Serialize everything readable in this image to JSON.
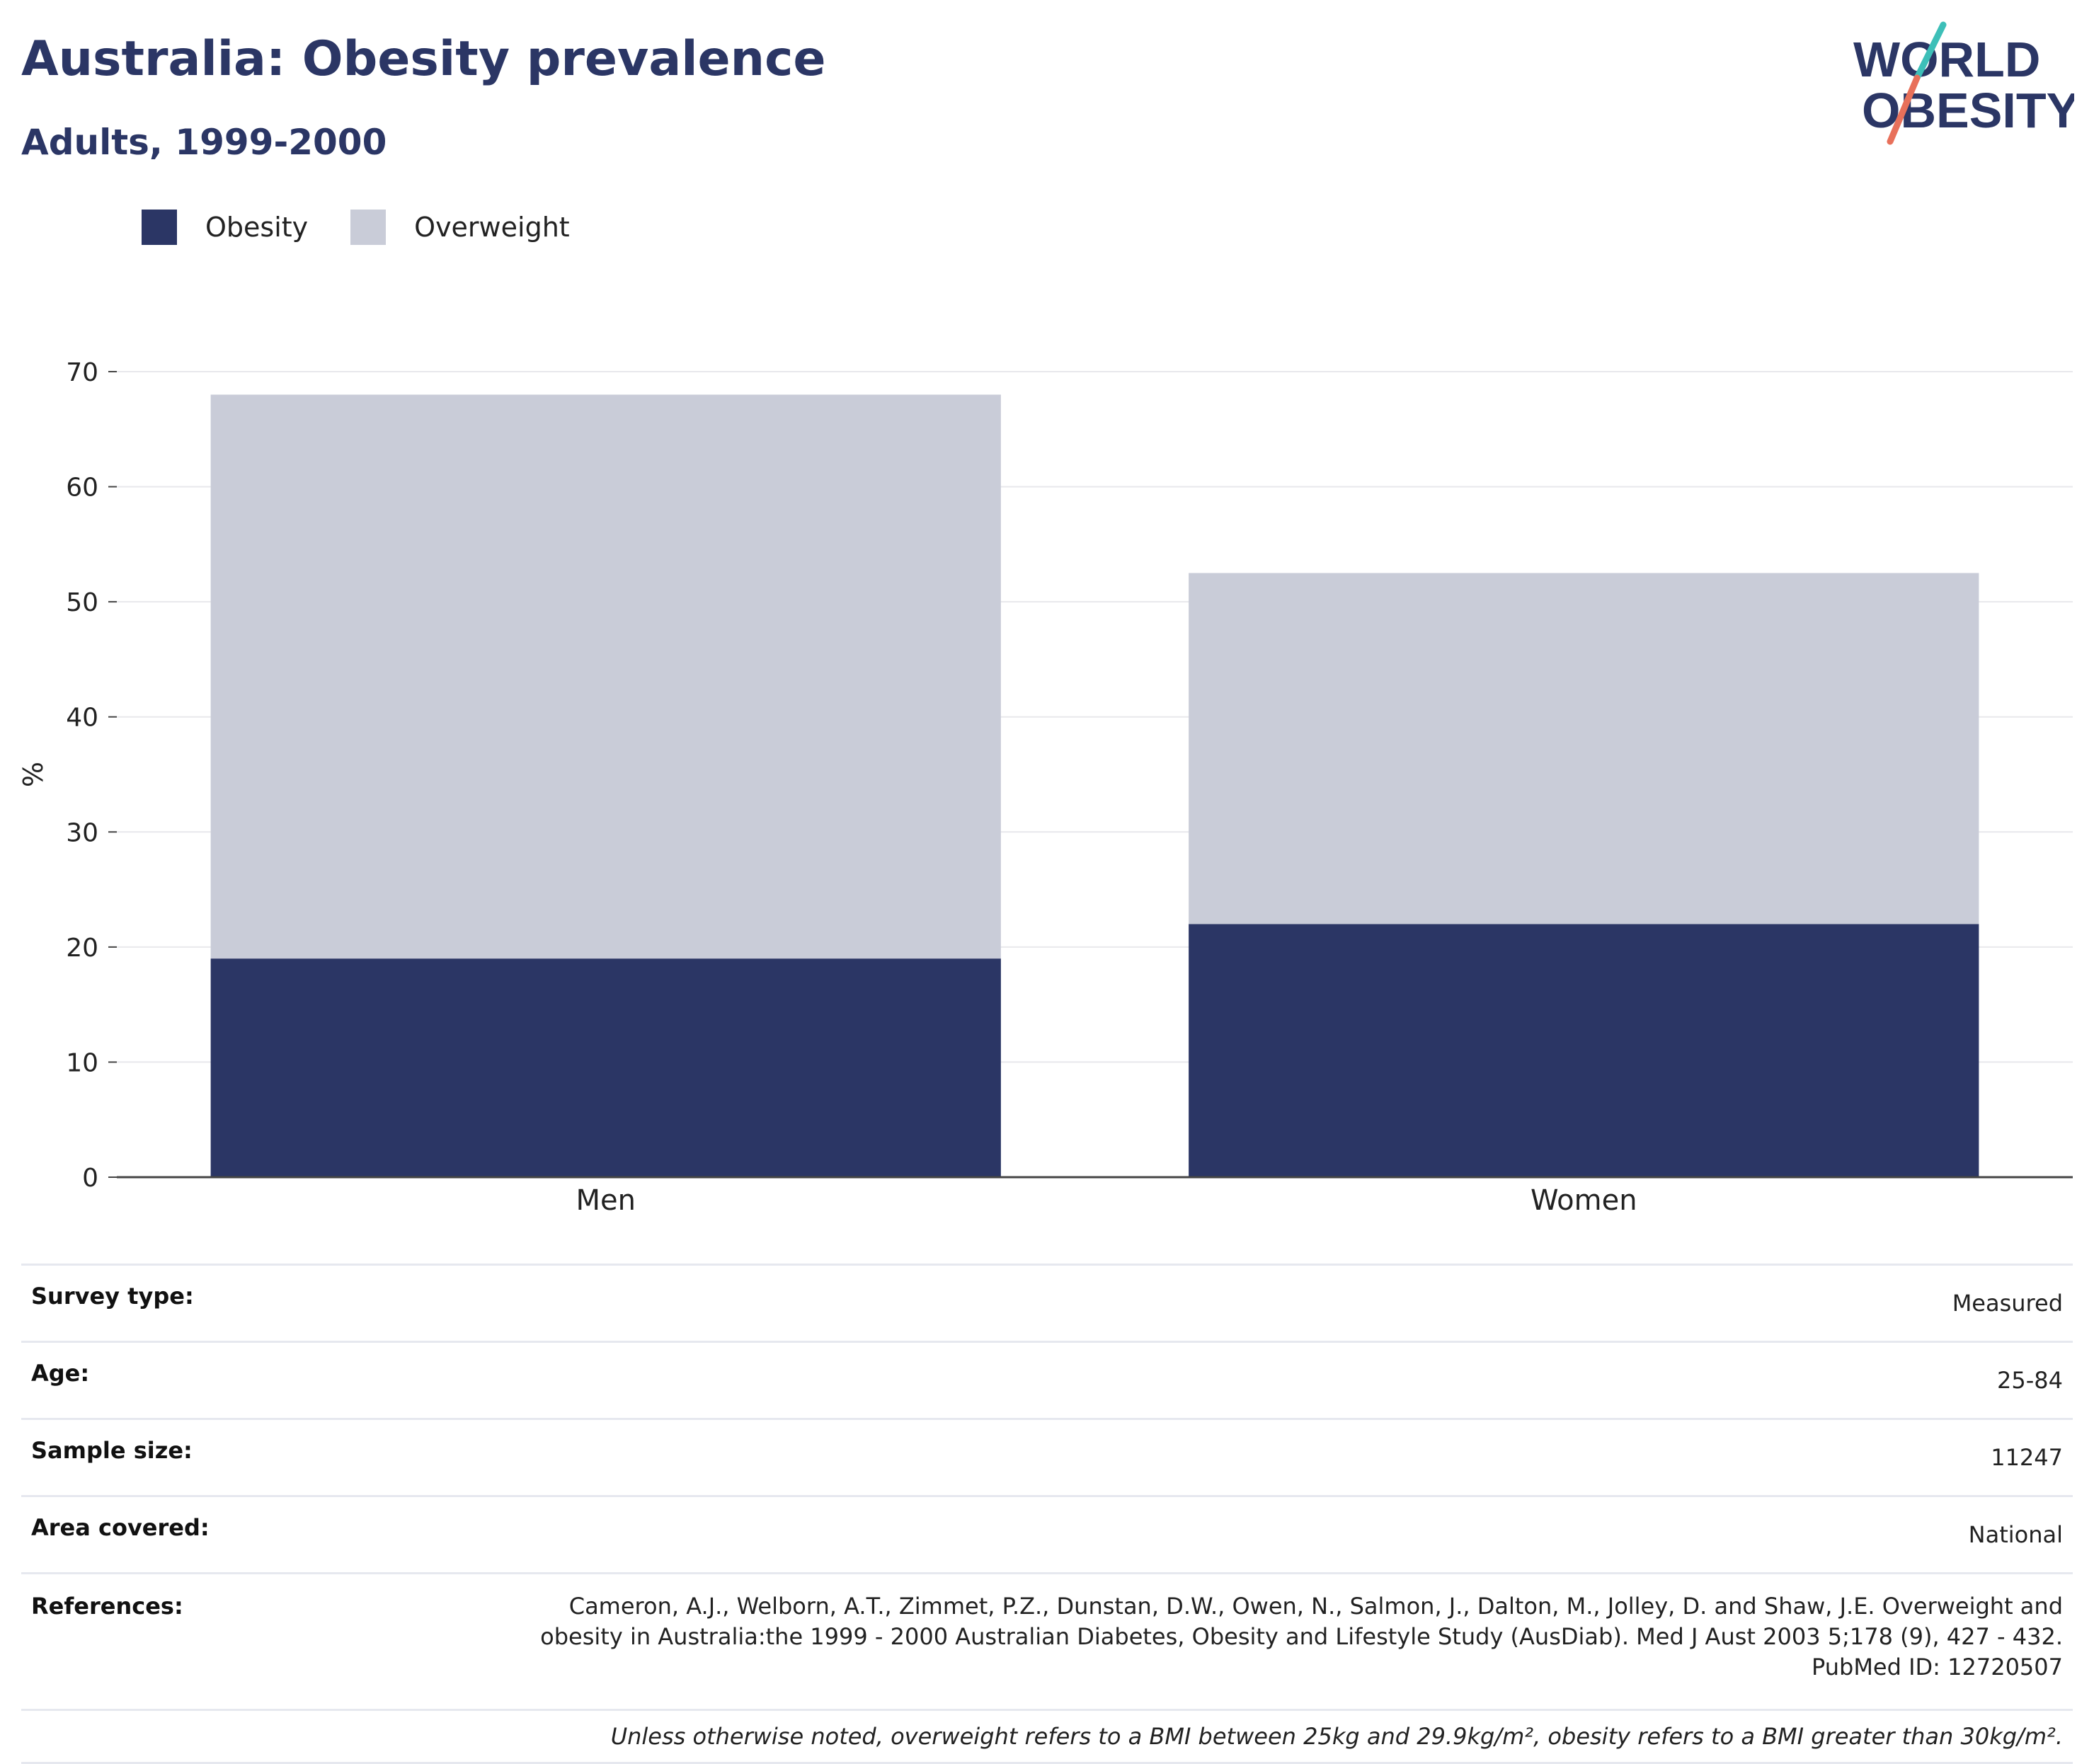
{
  "header": {
    "title": "Australia: Obesity prevalence",
    "subtitle": "Adults, 1999-2000",
    "logo_line1": "WORLD",
    "logo_line2": "OBESITY"
  },
  "legend": {
    "items": [
      {
        "label": "Obesity",
        "color": "#2b3665"
      },
      {
        "label": "Overweight",
        "color": "#c9ccd8"
      }
    ]
  },
  "chart_data": {
    "type": "bar",
    "stacked": true,
    "categories": [
      "Men",
      "Women"
    ],
    "series": [
      {
        "name": "Obesity",
        "values": [
          19,
          22
        ],
        "color": "#2b3665"
      },
      {
        "name": "Overweight",
        "values": [
          49,
          30.5
        ],
        "color": "#c9ccd8"
      }
    ],
    "ylabel": "%",
    "ylim": [
      0,
      70
    ],
    "yticks": [
      0,
      10,
      20,
      30,
      40,
      50,
      60,
      70
    ],
    "grid": true,
    "legend_position": "top-left"
  },
  "info": {
    "rows": [
      {
        "key": "Survey type:",
        "value": "Measured"
      },
      {
        "key": "Age:",
        "value": "25-84"
      },
      {
        "key": "Sample size:",
        "value": "11247"
      },
      {
        "key": "Area covered:",
        "value": "National"
      }
    ],
    "references_key": "References:",
    "references_value": "Cameron, A.J., Welborn, A.T., Zimmet, P.Z., Dunstan, D.W., Owen, N., Salmon, J., Dalton, M., Jolley, D. and Shaw, J.E. Overweight and\nobesity in Australia:the 1999 - 2000 Australian Diabetes, Obesity and Lifestyle Study (AusDiab). Med J Aust 2003 5;178 (9), 427 - 432.\nPubMed ID: 12720507",
    "note": "Unless otherwise noted, overweight refers to a BMI between 25kg and 29.9kg/m², obesity refers to a BMI greater than 30kg/m²."
  }
}
